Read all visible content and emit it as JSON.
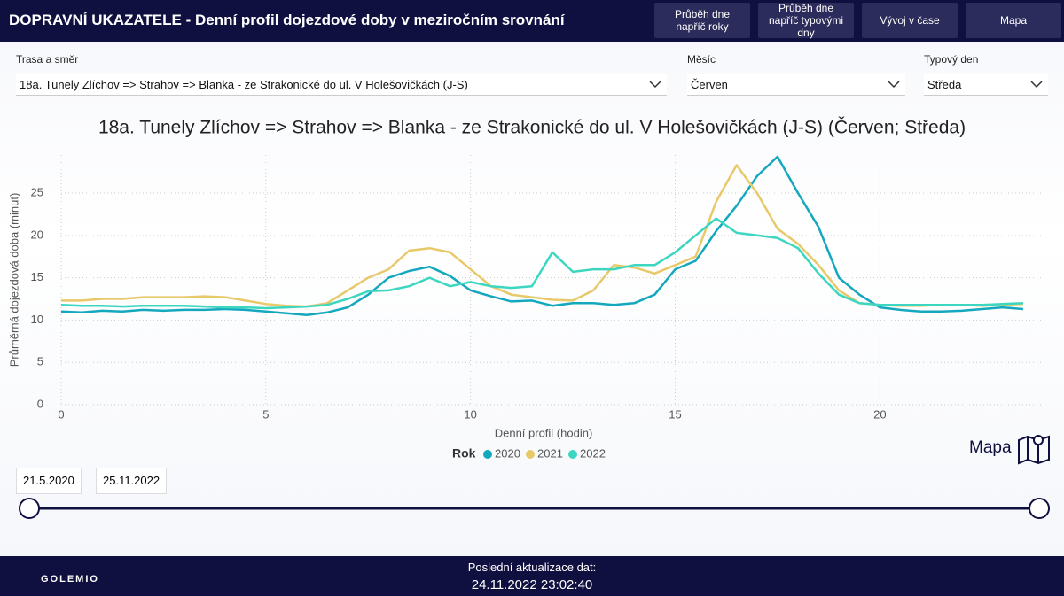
{
  "header": {
    "title": "DOPRAVNÍ UKAZATELE - Denní profil dojezdové doby v meziročním srovnání",
    "buttons": [
      "Průběh dne napříč roky",
      "Průběh dne napříč typovými dny",
      "Vývoj v čase",
      "Mapa"
    ]
  },
  "filters": [
    {
      "label": "Trasa a směr",
      "value": "18a. Tunely Zlíchov => Strahov => Blanka - ze Strakonické do ul. V Holešovičkách (J-S)"
    },
    {
      "label": "Měsíc",
      "value": "Červen"
    },
    {
      "label": "Typový den",
      "value": "Středa"
    }
  ],
  "chart_data": {
    "type": "line",
    "title": "18a. Tunely Zlíchov => Strahov => Blanka - ze Strakonické do ul. V Holešovičkách (J-S) (Červen; Středa)",
    "x_label": "Denní profil (hodin)",
    "y_label": "Průměrná dojezdová doba (minut)",
    "legend_title": "Rok",
    "x": [
      0,
      0.5,
      1,
      1.5,
      2,
      2.5,
      3,
      3.5,
      4,
      4.5,
      5,
      5.5,
      6,
      6.5,
      7,
      7.5,
      8,
      8.5,
      9,
      9.5,
      10,
      10.5,
      11,
      11.5,
      12,
      12.5,
      13,
      13.5,
      14,
      14.5,
      15,
      15.5,
      16,
      16.5,
      17,
      17.5,
      18,
      18.5,
      19,
      19.5,
      20,
      20.5,
      21,
      21.5,
      22,
      22.5,
      23,
      23.5
    ],
    "series": [
      {
        "name": "2020",
        "color": "#14a8bf",
        "values": [
          11,
          10.9,
          11.1,
          11,
          11.2,
          11.1,
          11.2,
          11.2,
          11.3,
          11.2,
          11,
          10.8,
          10.6,
          10.9,
          11.5,
          13,
          15,
          15.8,
          16.3,
          15.2,
          13.5,
          12.8,
          12.2,
          12.3,
          11.7,
          12,
          12,
          11.8,
          12,
          13,
          16,
          17,
          20.5,
          23.5,
          27,
          29.3,
          25,
          21,
          15,
          13,
          11.5,
          11.2,
          11,
          11,
          11.1,
          11.3,
          11.5,
          11.3
        ]
      },
      {
        "name": "2021",
        "color": "#e8c96a",
        "values": [
          12.3,
          12.3,
          12.5,
          12.5,
          12.7,
          12.7,
          12.7,
          12.8,
          12.7,
          12.3,
          11.9,
          11.7,
          11.6,
          12,
          13.5,
          15,
          16,
          18.2,
          18.5,
          18,
          16,
          14,
          13,
          12.7,
          12.4,
          12.3,
          13.5,
          16.5,
          16.2,
          15.5,
          16.5,
          17.5,
          24,
          28.3,
          25,
          20.8,
          19,
          16.5,
          13.5,
          12,
          11.8,
          11.7,
          11.7,
          11.8,
          11.8,
          11.7,
          11.8,
          11.9
        ]
      },
      {
        "name": "2022",
        "color": "#3dd6c0",
        "values": [
          11.8,
          11.7,
          11.7,
          11.6,
          11.7,
          11.7,
          11.7,
          11.6,
          11.5,
          11.5,
          11.4,
          11.5,
          11.6,
          11.8,
          12.5,
          13.4,
          13.5,
          14,
          15,
          14,
          14.5,
          14,
          13.8,
          14,
          18,
          15.7,
          16,
          16,
          16.5,
          16.5,
          18,
          20,
          22,
          20.3,
          20,
          19.7,
          18.5,
          15.5,
          13,
          12,
          11.8,
          11.8,
          11.8,
          11.8,
          11.8,
          11.8,
          11.9,
          12
        ]
      }
    ],
    "xlim": [
      0,
      24
    ],
    "ylim": [
      0,
      29.5
    ],
    "xticks": [
      0,
      5,
      10,
      15,
      20
    ],
    "yticks": [
      0,
      5,
      10,
      15,
      20,
      25
    ],
    "grid": true
  },
  "map_label": "Mapa",
  "date_range": [
    "21.5.2020",
    "25.11.2022"
  ],
  "footer": {
    "logo": "GOLEMIO",
    "update_label": "Poslední aktualizace dat:",
    "update_value": "24.11.2022 23:02:40"
  }
}
